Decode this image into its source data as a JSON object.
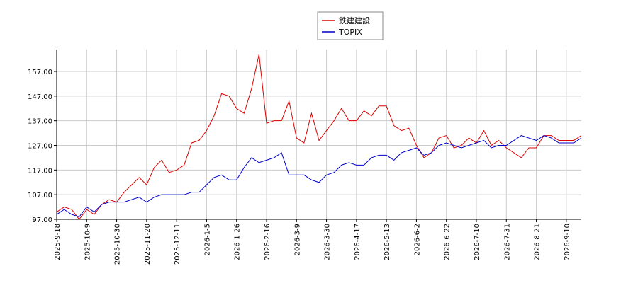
{
  "chart_data": {
    "type": "line",
    "categories": [
      "2025-9-18",
      null,
      null,
      null,
      "2025-10-9",
      null,
      null,
      null,
      "2025-10-30",
      null,
      null,
      null,
      "2025-11-20",
      null,
      null,
      null,
      "2025-12-11",
      null,
      null,
      null,
      "2026-1-5",
      null,
      null,
      null,
      "2026-1-26",
      null,
      null,
      null,
      "2026-2-16",
      null,
      null,
      null,
      "2026-3-9",
      null,
      null,
      null,
      "2026-3-30",
      null,
      null,
      null,
      "2026-4-17",
      null,
      null,
      null,
      "2026-5-13",
      null,
      null,
      null,
      "2026-6-2",
      null,
      null,
      null,
      "2026-6-22",
      null,
      null,
      null,
      "2026-7-10",
      null,
      null,
      null,
      "2026-7-31",
      null,
      null,
      null,
      "2026-8-21",
      null,
      null,
      null,
      "2026-9-10",
      null,
      null
    ],
    "series": [
      {
        "name": "鉄建建設",
        "color": "#dd0000",
        "values": [
          100,
          102,
          101,
          97,
          101,
          99,
          103,
          105,
          104,
          108,
          111,
          114,
          111,
          118,
          121,
          116,
          117,
          119,
          128,
          129,
          133,
          139,
          148,
          147,
          142,
          140,
          150,
          164,
          136,
          137,
          137,
          145,
          130,
          128,
          140,
          129,
          133,
          137,
          142,
          137,
          137,
          141,
          139,
          143,
          143,
          135,
          133,
          134,
          127,
          122,
          124,
          130,
          131,
          126,
          127,
          130,
          128,
          133,
          127,
          129,
          126,
          124,
          122,
          126,
          126,
          131,
          131,
          129,
          129,
          129,
          131
        ]
      },
      {
        "name": "TOPIX",
        "color": "#0000cc",
        "values": [
          99,
          101,
          99,
          98,
          102,
          100,
          103,
          104,
          104,
          104,
          105,
          106,
          104,
          106,
          107,
          107,
          107,
          107,
          108,
          108,
          111,
          114,
          115,
          113,
          113,
          118,
          122,
          120,
          121,
          122,
          124,
          115,
          115,
          115,
          113,
          112,
          115,
          116,
          119,
          120,
          119,
          119,
          122,
          123,
          123,
          121,
          124,
          125,
          126,
          123,
          124,
          127,
          128,
          127,
          126,
          127,
          128,
          129,
          126,
          127,
          127,
          129,
          131,
          130,
          129,
          131,
          130,
          128,
          128,
          128,
          130
        ]
      }
    ],
    "ylim": [
      97,
      165.9
    ],
    "yticks": [
      {
        "value": 97,
        "label": "97.00"
      },
      {
        "value": 107,
        "label": "107.00"
      },
      {
        "value": 117,
        "label": "117.00"
      },
      {
        "value": 127,
        "label": "127.00"
      },
      {
        "value": 137,
        "label": "137.00"
      },
      {
        "value": 147,
        "label": "147.00"
      },
      {
        "value": 157,
        "label": "157.00"
      }
    ],
    "grid": true
  }
}
